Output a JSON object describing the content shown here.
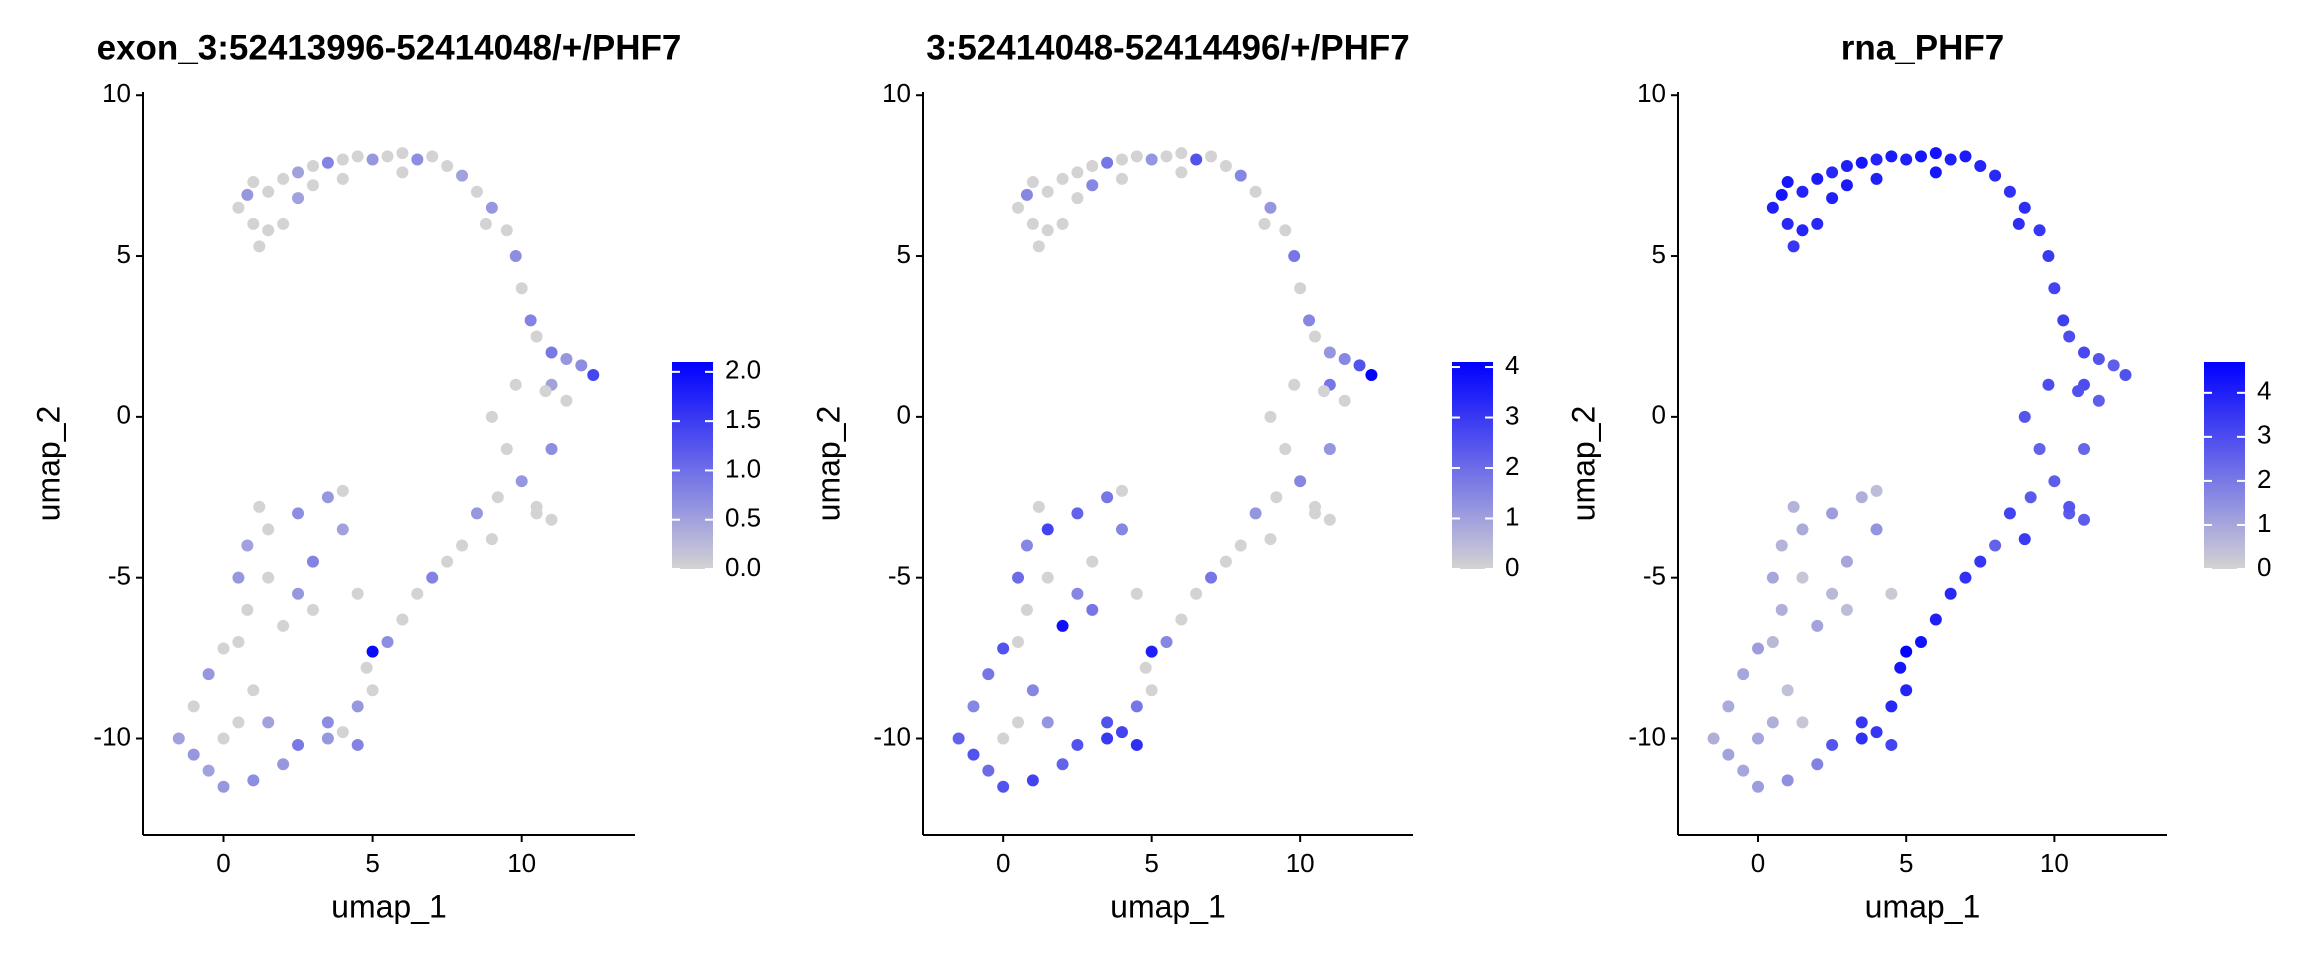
{
  "chart_data": [
    {
      "type": "scatter",
      "title": "exon_3:52413996-52414048/+/PHF7",
      "x_label": "umap_1",
      "y_label": "umap_2",
      "x": [
        0.5,
        1,
        1.2,
        0.8,
        1.5,
        2,
        2.5,
        3,
        3.5,
        4,
        4.5,
        5,
        5.5,
        6,
        6.5,
        7,
        7.5,
        8,
        8.5,
        9,
        9.5,
        9.8,
        10,
        10.3,
        10.5,
        11,
        11.5,
        12,
        12.4,
        11,
        2,
        1.5,
        2.5,
        3,
        1,
        4,
        6,
        8.8,
        9,
        9.5,
        10,
        10.5,
        11,
        11.5,
        10.8,
        9.8,
        9.2,
        8.5,
        8,
        9,
        10.5,
        11,
        7.5,
        7,
        6.5,
        6,
        5.5,
        5,
        4.8,
        5,
        4.5,
        3.5,
        2.5,
        3.5,
        4,
        4.5,
        2,
        1,
        0,
        -0.5,
        -1,
        -1.5,
        -1,
        -0.5,
        0,
        0.5,
        1,
        0.5,
        1.5,
        0,
        0.8,
        0.5,
        0.8,
        1.5,
        2.5,
        3.5,
        4,
        4,
        3,
        2.5,
        2,
        1.5,
        3,
        1.2,
        4.5
      ],
      "y": [
        6.5,
        6,
        5.3,
        6.9,
        7,
        7.4,
        7.6,
        7.8,
        7.9,
        8,
        8.1,
        8,
        8.1,
        8.2,
        8,
        8.1,
        7.8,
        7.5,
        7,
        6.5,
        5.8,
        5,
        4,
        3,
        2.5,
        2,
        1.8,
        1.6,
        1.3,
        1,
        6,
        5.8,
        6.8,
        7.2,
        7.3,
        7.4,
        7.6,
        6,
        0,
        -1,
        -2,
        -3,
        -1,
        0.5,
        0.8,
        1,
        -2.5,
        -3,
        -4,
        -3.8,
        -2.8,
        -3.2,
        -4.5,
        -5,
        -5.5,
        -6.3,
        -7,
        -7.3,
        -7.8,
        -8.5,
        -9,
        -9.5,
        -10.2,
        -10,
        -9.8,
        -10.2,
        -10.8,
        -11.3,
        -11.5,
        -11,
        -10.5,
        -10,
        -9,
        -8,
        -7.2,
        -7,
        -8.5,
        -9.5,
        -9.5,
        -10,
        -6,
        -5,
        -4,
        -3.5,
        -3,
        -2.5,
        -2.3,
        -3.5,
        -4.5,
        -5.5,
        -6.5,
        -5,
        -6,
        -2.8,
        -5.5
      ],
      "values": [
        0,
        0,
        0,
        0.6,
        0,
        0,
        0.5,
        0,
        0.8,
        0,
        0,
        0.6,
        0,
        0,
        0.7,
        0,
        0,
        0.5,
        0,
        0.6,
        0,
        0.7,
        0,
        0.8,
        0,
        0.9,
        0.6,
        0.7,
        1.4,
        0.5,
        0,
        0,
        0.5,
        0,
        0,
        0,
        0,
        0,
        0,
        0,
        0.6,
        0,
        0.7,
        0,
        0,
        0,
        0,
        0.6,
        0,
        0,
        0,
        0,
        0,
        0.8,
        0,
        0,
        0.7,
        2.0,
        0,
        0,
        0.6,
        0.7,
        0.9,
        0.6,
        0,
        0.8,
        0.6,
        0.7,
        0.6,
        0.5,
        0.6,
        0.5,
        0,
        0.6,
        0,
        0,
        0,
        0,
        0.5,
        0,
        0,
        0.6,
        0.5,
        0,
        0.7,
        0.6,
        0,
        0.5,
        0.8,
        0.6,
        0,
        0,
        0,
        0,
        0
      ],
      "xlim": [
        -2.7,
        13.8
      ],
      "ylim": [
        -13,
        10.1
      ],
      "xticks": [
        0,
        5,
        10
      ],
      "yticks": [
        -10,
        -5,
        0,
        5,
        10
      ],
      "colorbar": {
        "lim": [
          0,
          2.1
        ],
        "low_color": "#d3d3d3",
        "high_color": "#0000ff",
        "ticks": [
          {
            "value": 0,
            "label": "0.0"
          },
          {
            "value": 0.5,
            "label": "0.5"
          },
          {
            "value": 1,
            "label": "1.0"
          },
          {
            "value": 1.5,
            "label": "1.5"
          },
          {
            "value": 2,
            "label": "2.0"
          }
        ]
      }
    },
    {
      "type": "scatter",
      "title": "3:52414048-52414496/+/PHF7",
      "x_label": "umap_1",
      "y_label": "umap_2",
      "x": [
        0.5,
        1,
        1.2,
        0.8,
        1.5,
        2,
        2.5,
        3,
        3.5,
        4,
        4.5,
        5,
        5.5,
        6,
        6.5,
        7,
        7.5,
        8,
        8.5,
        9,
        9.5,
        9.8,
        10,
        10.3,
        10.5,
        11,
        11.5,
        12,
        12.4,
        11,
        2,
        1.5,
        2.5,
        3,
        1,
        4,
        6,
        8.8,
        9,
        9.5,
        10,
        10.5,
        11,
        11.5,
        10.8,
        9.8,
        9.2,
        8.5,
        8,
        9,
        10.5,
        11,
        7.5,
        7,
        6.5,
        6,
        5.5,
        5,
        4.8,
        5,
        4.5,
        3.5,
        2.5,
        3.5,
        4,
        4.5,
        2,
        1,
        0,
        -0.5,
        -1,
        -1.5,
        -1,
        -0.5,
        0,
        0.5,
        1,
        0.5,
        1.5,
        0,
        0.8,
        0.5,
        0.8,
        1.5,
        2.5,
        3.5,
        4,
        4,
        3,
        2.5,
        2,
        1.5,
        3,
        1.2,
        4.5
      ],
      "y": [
        6.5,
        6,
        5.3,
        6.9,
        7,
        7.4,
        7.6,
        7.8,
        7.9,
        8,
        8.1,
        8,
        8.1,
        8.2,
        8,
        8.1,
        7.8,
        7.5,
        7,
        6.5,
        5.8,
        5,
        4,
        3,
        2.5,
        2,
        1.8,
        1.6,
        1.3,
        1,
        6,
        5.8,
        6.8,
        7.2,
        7.3,
        7.4,
        7.6,
        6,
        0,
        -1,
        -2,
        -3,
        -1,
        0.5,
        0.8,
        1,
        -2.5,
        -3,
        -4,
        -3.8,
        -2.8,
        -3.2,
        -4.5,
        -5,
        -5.5,
        -6.3,
        -7,
        -7.3,
        -7.8,
        -8.5,
        -9,
        -9.5,
        -10.2,
        -10,
        -9.8,
        -10.2,
        -10.8,
        -11.3,
        -11.5,
        -11,
        -10.5,
        -10,
        -9,
        -8,
        -7.2,
        -7,
        -8.5,
        -9.5,
        -9.5,
        -10,
        -6,
        -5,
        -4,
        -3.5,
        -3,
        -2.5,
        -2.3,
        -3.5,
        -4.5,
        -5.5,
        -6.5,
        -5,
        -6,
        -2.8,
        -5.5
      ],
      "values": [
        0,
        0,
        0,
        1.5,
        0,
        0,
        0,
        0,
        1.8,
        0,
        0,
        1.2,
        0,
        0,
        2.5,
        0,
        0,
        1.5,
        0,
        1.2,
        0,
        1.8,
        0,
        1.5,
        0,
        1.2,
        1.5,
        2.5,
        4.1,
        1.8,
        0,
        0,
        0,
        1.5,
        0,
        0,
        0,
        0,
        0,
        0,
        1.5,
        0,
        1.2,
        0,
        0,
        0,
        0,
        1.2,
        0,
        0,
        0,
        0,
        0,
        1.8,
        0,
        0,
        1.5,
        3.5,
        0,
        0,
        1.8,
        2.5,
        2.5,
        3,
        2.8,
        3.2,
        2.2,
        2.8,
        2.5,
        2,
        2.5,
        2.2,
        1.5,
        1.8,
        2.5,
        0,
        1.5,
        0,
        1.2,
        0,
        0,
        2,
        1.5,
        2.8,
        2.2,
        1.8,
        0,
        1.5,
        0,
        1.5,
        3.8,
        0,
        1.8,
        0,
        0
      ],
      "xlim": [
        -2.7,
        13.8
      ],
      "ylim": [
        -13,
        10.1
      ],
      "xticks": [
        0,
        5,
        10
      ],
      "yticks": [
        -10,
        -5,
        0,
        5,
        10
      ],
      "colorbar": {
        "lim": [
          0,
          4.1
        ],
        "low_color": "#d3d3d3",
        "high_color": "#0000ff",
        "ticks": [
          0,
          1,
          2,
          3,
          4
        ]
      }
    },
    {
      "type": "scatter",
      "title": "rna_PHF7",
      "x_label": "umap_1",
      "y_label": "umap_2",
      "x": [
        0.5,
        1,
        1.2,
        0.8,
        1.5,
        2,
        2.5,
        3,
        3.5,
        4,
        4.5,
        5,
        5.5,
        6,
        6.5,
        7,
        7.5,
        8,
        8.5,
        9,
        9.5,
        9.8,
        10,
        10.3,
        10.5,
        11,
        11.5,
        12,
        12.4,
        11,
        2,
        1.5,
        2.5,
        3,
        1,
        4,
        6,
        8.8,
        9,
        9.5,
        10,
        10.5,
        11,
        11.5,
        10.8,
        9.8,
        9.2,
        8.5,
        8,
        9,
        10.5,
        11,
        7.5,
        7,
        6.5,
        6,
        5.5,
        5,
        4.8,
        5,
        4.5,
        3.5,
        2.5,
        3.5,
        4,
        4.5,
        2,
        1,
        0,
        -0.5,
        -1,
        -1.5,
        -1,
        -0.5,
        0,
        0.5,
        1,
        0.5,
        1.5,
        0,
        0.8,
        0.5,
        0.8,
        1.5,
        2.5,
        3.5,
        4,
        4,
        3,
        2.5,
        2,
        1.5,
        3,
        1.2,
        4.5
      ],
      "y": [
        6.5,
        6,
        5.3,
        6.9,
        7,
        7.4,
        7.6,
        7.8,
        7.9,
        8,
        8.1,
        8,
        8.1,
        8.2,
        8,
        8.1,
        7.8,
        7.5,
        7,
        6.5,
        5.8,
        5,
        4,
        3,
        2.5,
        2,
        1.8,
        1.6,
        1.3,
        1,
        6,
        5.8,
        6.8,
        7.2,
        7.3,
        7.4,
        7.6,
        6,
        0,
        -1,
        -2,
        -3,
        -1,
        0.5,
        0.8,
        1,
        -2.5,
        -3,
        -4,
        -3.8,
        -2.8,
        -3.2,
        -4.5,
        -5,
        -5.5,
        -6.3,
        -7,
        -7.3,
        -7.8,
        -8.5,
        -9,
        -9.5,
        -10.2,
        -10,
        -9.8,
        -10.2,
        -10.8,
        -11.3,
        -11.5,
        -11,
        -10.5,
        -10,
        -9,
        -8,
        -7.2,
        -7,
        -8.5,
        -9.5,
        -9.5,
        -10,
        -6,
        -5,
        -4,
        -3.5,
        -3,
        -2.5,
        -2.3,
        -3.5,
        -4.5,
        -5.5,
        -6.5,
        -5,
        -6,
        -2.8,
        -5.5
      ],
      "values": [
        4,
        3.8,
        3.5,
        4.2,
        3.9,
        4.1,
        3.8,
        4,
        4.2,
        3.9,
        4.1,
        4,
        4.2,
        4.3,
        4,
        4.1,
        3.9,
        3.8,
        3.6,
        3.7,
        3.5,
        3.4,
        3.2,
        3.3,
        3,
        3.1,
        2.8,
        2.6,
        2.9,
        3,
        3.8,
        3.9,
        4,
        4.1,
        4.2,
        4,
        4.2,
        3.7,
        2.8,
        2.5,
        2.6,
        2.7,
        2.4,
        2.6,
        2.9,
        3,
        2.7,
        3.2,
        2.5,
        3.4,
        2.8,
        2.6,
        3.5,
        3.6,
        3.8,
        4,
        4.3,
        4.6,
        4.2,
        3.9,
        3.8,
        3.5,
        2.8,
        3.6,
        3.5,
        3.2,
        1.8,
        1.5,
        1.2,
        1,
        1.1,
        0.8,
        0.9,
        1,
        1.2,
        0.6,
        0.4,
        0.8,
        0.3,
        1,
        0.8,
        1,
        0.7,
        0.9,
        1.2,
        0.8,
        0.5,
        1.4,
        1,
        0.6,
        1.1,
        0.3,
        0.5,
        0.7,
        0.2
      ],
      "xlim": [
        -2.7,
        13.8
      ],
      "ylim": [
        -13,
        10.1
      ],
      "xticks": [
        0,
        5,
        10
      ],
      "yticks": [
        -10,
        -5,
        0,
        5,
        10
      ],
      "colorbar": {
        "lim": [
          0,
          4.7
        ],
        "low_color": "#d3d3d3",
        "high_color": "#0000ff",
        "ticks": [
          0,
          1,
          2,
          3,
          4
        ]
      }
    }
  ]
}
